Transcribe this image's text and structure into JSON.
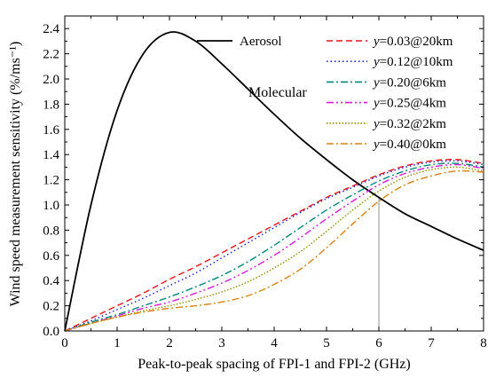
{
  "chart_data": {
    "type": "line",
    "xlabel": "Peak-to-peak spacing of FPI-1 and FPI-2 (GHz)",
    "ylabel": "Wind speed measurement sensitivity (%/ms⁻¹)",
    "xlim": [
      0,
      8
    ],
    "ylim": [
      0,
      2.5
    ],
    "xticks": [
      "0",
      "1",
      "2",
      "3",
      "4",
      "5",
      "6",
      "7",
      "8"
    ],
    "yticks": [
      "0.0",
      "0.2",
      "0.4",
      "0.6",
      "0.8",
      "1.0",
      "1.2",
      "1.4",
      "1.6",
      "1.8",
      "2.0",
      "2.2",
      "2.4"
    ],
    "grid": false,
    "legend_position": "top-right",
    "annotations": [
      {
        "text": "Molecular",
        "x": 3.5,
        "y": 1.85
      },
      {
        "text": "Aerosol",
        "legend": true
      }
    ],
    "reference_line": {
      "x": 6,
      "y": 1.06
    },
    "series": [
      {
        "name": "Aerosol",
        "color": "#000000",
        "dash": "",
        "x": [
          0,
          0.5,
          1,
          1.5,
          2,
          2.5,
          3,
          3.5,
          4,
          4.5,
          5,
          5.5,
          6,
          6.5,
          7,
          7.5,
          8
        ],
        "y": [
          0,
          1.0,
          1.75,
          2.2,
          2.37,
          2.3,
          2.12,
          1.92,
          1.72,
          1.53,
          1.36,
          1.2,
          1.06,
          0.93,
          0.83,
          0.73,
          0.64
        ]
      },
      {
        "name": "y=0.03@20km",
        "label_italic": "y",
        "label_rest": "=0.03@20km",
        "color": "#e8141c",
        "dash": "7,4",
        "x": [
          0,
          0.5,
          1,
          1.5,
          2,
          2.5,
          3,
          3.5,
          4,
          4.5,
          5,
          5.5,
          6,
          6.5,
          7,
          7.5,
          8
        ],
        "y": [
          0,
          0.1,
          0.2,
          0.3,
          0.41,
          0.51,
          0.62,
          0.73,
          0.84,
          0.95,
          1.06,
          1.15,
          1.24,
          1.31,
          1.35,
          1.36,
          1.33
        ]
      },
      {
        "name": "y=0.12@10km",
        "label_italic": "y",
        "label_rest": "=0.12@10km",
        "color": "#1c1ce0",
        "dash": "1.5,3",
        "x": [
          0,
          0.5,
          1,
          1.5,
          2,
          2.5,
          3,
          3.5,
          4,
          4.5,
          5,
          5.5,
          6,
          6.5,
          7,
          7.5,
          8
        ],
        "y": [
          0,
          0.08,
          0.17,
          0.26,
          0.36,
          0.46,
          0.58,
          0.7,
          0.82,
          0.94,
          1.05,
          1.14,
          1.23,
          1.3,
          1.34,
          1.35,
          1.32
        ]
      },
      {
        "name": "y=0.20@6km",
        "label_italic": "y",
        "label_rest": "=0.20@6km",
        "color": "#00897b",
        "dash": "8,3,2,3",
        "x": [
          0,
          0.5,
          1,
          1.5,
          2,
          2.5,
          3,
          3.5,
          4,
          4.5,
          5,
          5.5,
          6,
          6.5,
          7,
          7.5,
          8
        ],
        "y": [
          0,
          0.07,
          0.13,
          0.2,
          0.27,
          0.35,
          0.44,
          0.55,
          0.68,
          0.82,
          0.96,
          1.08,
          1.19,
          1.27,
          1.32,
          1.33,
          1.3
        ]
      },
      {
        "name": "y=0.25@4km",
        "label_italic": "y",
        "label_rest": "=0.25@4km",
        "color": "#d91cd9",
        "dash": "8,3,2,3,2,3",
        "x": [
          0,
          0.5,
          1,
          1.5,
          2,
          2.5,
          3,
          3.5,
          4,
          4.5,
          5,
          5.5,
          6,
          6.5,
          7,
          7.5,
          8
        ],
        "y": [
          0,
          0.06,
          0.12,
          0.18,
          0.23,
          0.3,
          0.38,
          0.48,
          0.6,
          0.74,
          0.89,
          1.03,
          1.16,
          1.25,
          1.3,
          1.32,
          1.29
        ]
      },
      {
        "name": "y=0.32@2km",
        "label_italic": "y",
        "label_rest": "=0.32@2km",
        "color": "#8f8f00",
        "dash": "1.5,2",
        "x": [
          0,
          0.5,
          1,
          1.5,
          2,
          2.5,
          3,
          3.5,
          4,
          4.5,
          5,
          5.5,
          6,
          6.5,
          7,
          7.5,
          8
        ],
        "y": [
          0,
          0.06,
          0.11,
          0.16,
          0.2,
          0.25,
          0.31,
          0.39,
          0.5,
          0.63,
          0.79,
          0.96,
          1.11,
          1.22,
          1.28,
          1.3,
          1.27
        ]
      },
      {
        "name": "y=0.40@0km",
        "label_italic": "y",
        "label_rest": "=0.40@0km",
        "color": "#d9820f",
        "dash": "8,3,2,3",
        "x": [
          0,
          0.5,
          1,
          1.5,
          2,
          2.5,
          3,
          3.5,
          4,
          4.5,
          5,
          5.5,
          6,
          6.5,
          7,
          7.5,
          8
        ],
        "y": [
          0,
          0.06,
          0.11,
          0.15,
          0.18,
          0.2,
          0.23,
          0.28,
          0.37,
          0.49,
          0.66,
          0.85,
          1.03,
          1.16,
          1.23,
          1.27,
          1.26
        ]
      }
    ]
  }
}
